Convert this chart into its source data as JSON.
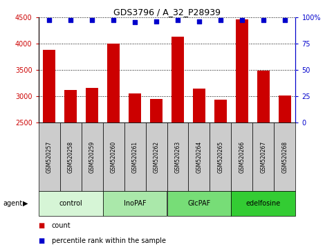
{
  "title": "GDS3796 / A_32_P28939",
  "samples": [
    "GSM520257",
    "GSM520258",
    "GSM520259",
    "GSM520260",
    "GSM520261",
    "GSM520262",
    "GSM520263",
    "GSM520264",
    "GSM520265",
    "GSM520266",
    "GSM520267",
    "GSM520268"
  ],
  "counts": [
    3880,
    3120,
    3155,
    4000,
    3050,
    2950,
    4130,
    3140,
    2940,
    4460,
    3480,
    3010
  ],
  "percentiles": [
    97,
    97,
    97,
    97,
    95,
    96,
    97,
    96,
    97,
    97,
    97,
    97
  ],
  "groups": [
    {
      "label": "control",
      "color": "#d6f5d6",
      "start": 0,
      "end": 3
    },
    {
      "label": "InoPAF",
      "color": "#aae8aa",
      "start": 3,
      "end": 6
    },
    {
      "label": "GlcPAF",
      "color": "#77dd77",
      "start": 6,
      "end": 9
    },
    {
      "label": "edelfosine",
      "color": "#33cc33",
      "start": 9,
      "end": 12
    }
  ],
  "bar_color": "#cc0000",
  "dot_color": "#0000cc",
  "ylim_left": [
    2500,
    4500
  ],
  "ylim_right": [
    0,
    100
  ],
  "yticks_left": [
    2500,
    3000,
    3500,
    4000,
    4500
  ],
  "yticks_right": [
    0,
    25,
    50,
    75,
    100
  ],
  "left_tick_color": "#cc0000",
  "right_tick_color": "#0000cc",
  "bg_color": "#ffffff",
  "sample_bg": "#cccccc",
  "agent_label": "agent"
}
